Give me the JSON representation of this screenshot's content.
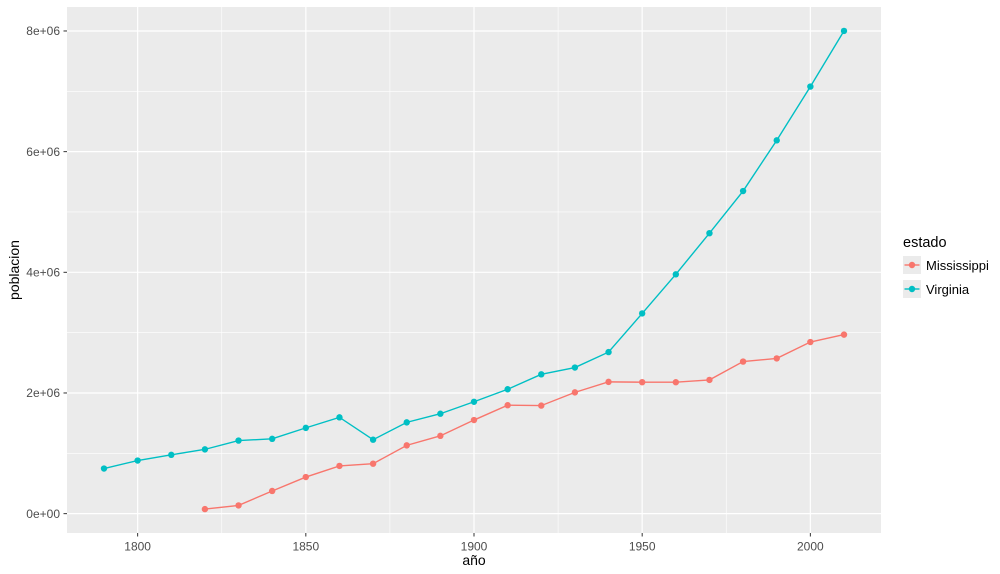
{
  "chart_data": {
    "type": "line",
    "xlabel": "año",
    "ylabel": "poblacion",
    "legend": {
      "title": "estado",
      "position": "right"
    },
    "x_axis": {
      "ticks": [
        1800,
        1850,
        1900,
        1950,
        2000
      ],
      "tick_labels": [
        "1800",
        "1850",
        "1900",
        "1950",
        "2000"
      ],
      "minor_ticks": [
        1825,
        1875,
        1925,
        1975
      ],
      "range": [
        1779,
        2021
      ]
    },
    "y_axis": {
      "ticks": [
        0,
        2000000,
        4000000,
        6000000,
        8000000
      ],
      "tick_labels": [
        "0e+00",
        "2e+06",
        "4e+06",
        "6e+06",
        "8e+06"
      ],
      "minor_ticks": [
        1000000,
        3000000,
        5000000,
        7000000
      ],
      "range": [
        -320831,
        8397303
      ]
    },
    "grid": true,
    "series": [
      {
        "name": "Mississippi",
        "color": "#F8766D",
        "x": [
          1820,
          1830,
          1840,
          1850,
          1860,
          1870,
          1880,
          1890,
          1900,
          1910,
          1920,
          1930,
          1940,
          1950,
          1960,
          1970,
          1980,
          1990,
          2000,
          2010
        ],
        "values": [
          75448,
          136621,
          375651,
          606526,
          791305,
          827922,
          1131597,
          1289600,
          1551270,
          1797114,
          1790618,
          2009821,
          2183796,
          2178914,
          2178141,
          2216912,
          2520638,
          2573216,
          2844658,
          2967297
        ]
      },
      {
        "name": "Virginia",
        "color": "#00BFC4",
        "x": [
          1790,
          1800,
          1810,
          1820,
          1830,
          1840,
          1850,
          1860,
          1870,
          1880,
          1890,
          1900,
          1910,
          1920,
          1930,
          1940,
          1950,
          1960,
          1970,
          1980,
          1990,
          2000,
          2010
        ],
        "values": [
          747610,
          880200,
          974600,
          1065366,
          1211405,
          1239797,
          1421661,
          1596318,
          1225163,
          1512565,
          1655980,
          1854184,
          2061612,
          2309187,
          2421851,
          2677773,
          3318680,
          3966949,
          4648494,
          5346818,
          6187358,
          7078515,
          8001024
        ]
      }
    ]
  },
  "theme": {
    "background": "#FFFFFF",
    "panel_background": "#EBEBEB",
    "grid_color": "#FFFFFF",
    "tick_label_color": "#4D4D4D",
    "tick_mark_color": "#333333",
    "axis_title_color": "#000000",
    "legend_key_background": "#EBEBEB"
  }
}
